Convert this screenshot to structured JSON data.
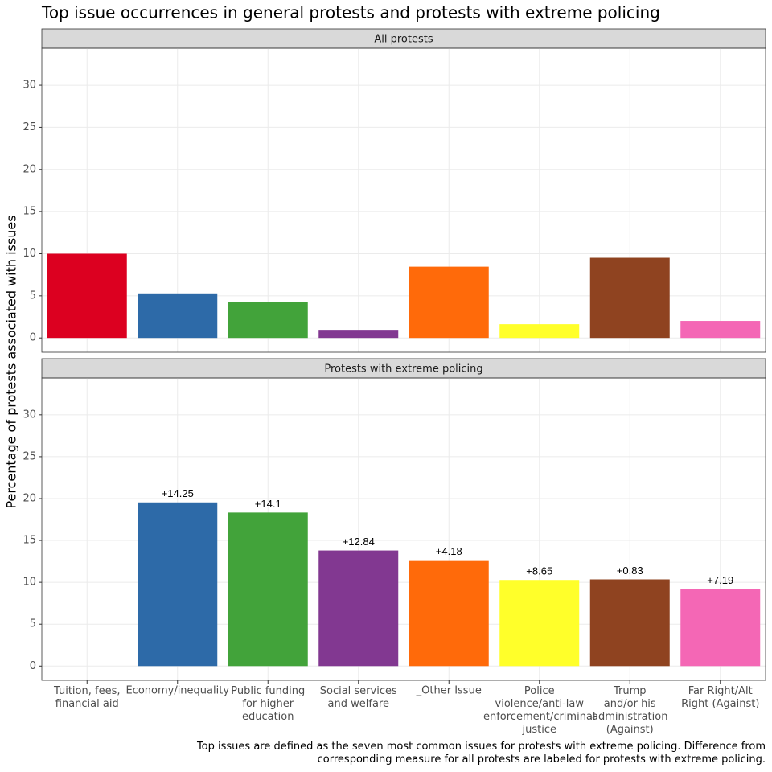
{
  "title": "Top issue occurrences in general protests and protests with extreme policing",
  "y_label": "Percentage of protests associated with issues",
  "caption": "Top issues are defined as the seven most common issues for protests with extreme policing. Difference from\ncorresponding measure for all protests are labeled for protests with extreme policing.",
  "chart_data": [
    {
      "type": "bar",
      "title": "All protests",
      "categories": [
        "Tuition, fees,\nfinancial aid",
        "Economy/inequality",
        "Public funding\nfor higher\neducation",
        "Social services\nand welfare",
        "_Other Issue",
        "Police\nviolence/anti-law\nenforcement/criminal\njustice",
        "Trump\nand/or his\nadministration\n(Against)",
        "Far Right/Alt\nRight (Against)"
      ],
      "values": [
        10.0,
        5.29,
        4.23,
        0.96,
        8.46,
        1.63,
        9.52,
        2.02
      ],
      "colors": [
        "#dc0020",
        "#2d6aa8",
        "#42a33a",
        "#823891",
        "#ff6a0a",
        "#ffff2a",
        "#8f4320",
        "#f467b5"
      ],
      "ylim": [
        -1.7,
        34.4
      ],
      "yticks": [
        0,
        5,
        10,
        15,
        20,
        25,
        30
      ],
      "grid": true
    },
    {
      "type": "bar",
      "title": "Protests with extreme policing",
      "categories": [
        "Tuition, fees,\nfinancial aid",
        "Economy/inequality",
        "Public funding\nfor higher\neducation",
        "Social services\nand welfare",
        "_Other Issue",
        "Police\nviolence/anti-law\nenforcement/criminal\njustice",
        "Trump\nand/or his\nadministration\n(Against)",
        "Far Right/Alt\nRight (Against)"
      ],
      "values": [
        0,
        19.54,
        18.33,
        13.8,
        12.64,
        10.28,
        10.35,
        9.21
      ],
      "annotations": [
        null,
        "+14.25",
        "+14.1",
        "+12.84",
        "+4.18",
        "+8.65",
        "+0.83",
        "+7.19"
      ],
      "colors": [
        "#dc0020",
        "#2d6aa8",
        "#42a33a",
        "#823891",
        "#ff6a0a",
        "#ffff2a",
        "#8f4320",
        "#f467b5"
      ],
      "ylim": [
        -1.7,
        34.4
      ],
      "yticks": [
        0,
        5,
        10,
        15,
        20,
        25,
        30
      ],
      "grid": true
    }
  ]
}
